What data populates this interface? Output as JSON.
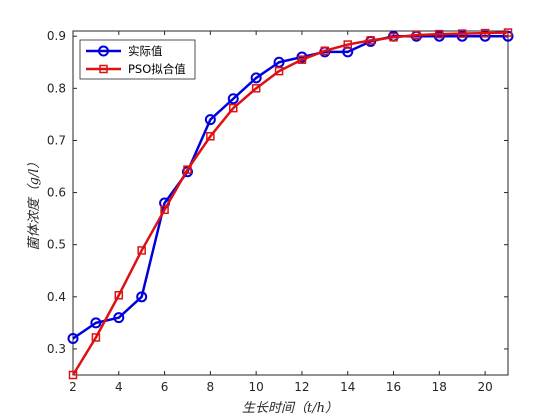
{
  "chart_data": {
    "type": "line",
    "title": "",
    "xlabel": "生长时间（t/h）",
    "ylabel": "菌体浓度（g/l）",
    "xlim": [
      2,
      21
    ],
    "ylim": [
      0.25,
      0.91
    ],
    "xticks": [
      2,
      4,
      6,
      8,
      10,
      12,
      14,
      16,
      18,
      20
    ],
    "yticks": [
      0.3,
      0.4,
      0.5,
      0.6,
      0.7,
      0.8,
      0.9
    ],
    "x": [
      2,
      3,
      4,
      5,
      6,
      7,
      8,
      9,
      10,
      11,
      12,
      13,
      14,
      15,
      16,
      17,
      18,
      19,
      20,
      21
    ],
    "series": [
      {
        "name": "实际值",
        "color": "#0000dd",
        "marker": "circle",
        "values": [
          0.32,
          0.35,
          0.36,
          0.4,
          0.58,
          0.64,
          0.74,
          0.78,
          0.82,
          0.85,
          0.86,
          0.87,
          0.87,
          0.89,
          0.9,
          0.9,
          0.9,
          0.9,
          0.9,
          0.9
        ]
      },
      {
        "name": "PSO拟合值",
        "color": "#dd1111",
        "marker": "square",
        "values": [
          0.25,
          0.322,
          0.403,
          0.489,
          0.567,
          0.644,
          0.708,
          0.762,
          0.8,
          0.833,
          0.855,
          0.872,
          0.884,
          0.892,
          0.898,
          0.902,
          0.904,
          0.905,
          0.906,
          0.907
        ]
      }
    ],
    "grid": false,
    "legend_position": "top-left"
  }
}
